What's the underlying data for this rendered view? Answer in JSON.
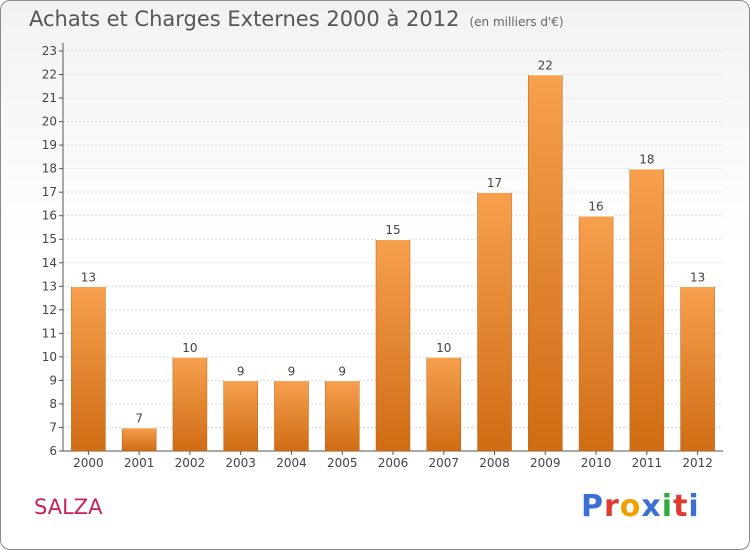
{
  "header": {
    "title": "Achats et Charges Externes 2000 à 2012",
    "subtitle": "(en milliers d'€)"
  },
  "footer": {
    "town": "SALZA",
    "brand": "Proxiti"
  },
  "colors": {
    "bar_top": "#f7a04e",
    "bar_bottom": "#cf6c14",
    "axis": "#555555",
    "grid": "#dcdcdc",
    "town": "#c8205a",
    "logo": [
      "#3b6fd6",
      "#e03a2f",
      "#f0a000",
      "#3b6fd6",
      "#2eaa3f",
      "#e03a2f",
      "#3b6fd6"
    ]
  },
  "chart_data": {
    "type": "bar",
    "categories": [
      "2000",
      "2001",
      "2002",
      "2003",
      "2004",
      "2005",
      "2006",
      "2007",
      "2008",
      "2009",
      "2010",
      "2011",
      "2012"
    ],
    "values": [
      13,
      7,
      10,
      9,
      9,
      9,
      15,
      10,
      17,
      22,
      16,
      18,
      13
    ],
    "data_labels": [
      "13",
      "7",
      "10",
      "9",
      "9",
      "9",
      "15",
      "10",
      "17",
      "22",
      "16",
      "18",
      "13"
    ],
    "title": "Achats et Charges Externes 2000 à 2012",
    "xlabel": "",
    "ylabel": "",
    "ylim": [
      6,
      23
    ],
    "yticks": [
      "6",
      "7",
      "8",
      "9",
      "10",
      "11",
      "12",
      "13",
      "14",
      "15",
      "16",
      "17",
      "18",
      "19",
      "20",
      "21",
      "22",
      "23"
    ],
    "grid": true,
    "legend": "none"
  }
}
